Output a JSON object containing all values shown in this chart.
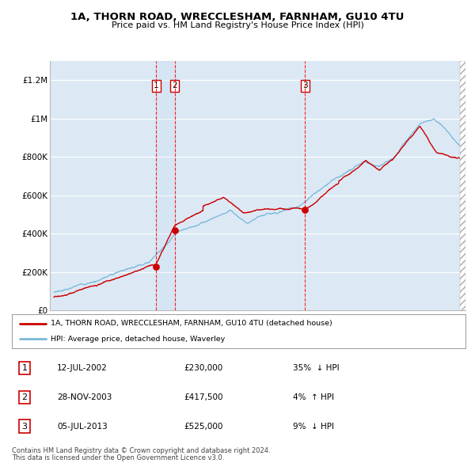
{
  "title": "1A, THORN ROAD, WRECCLESHAM, FARNHAM, GU10 4TU",
  "subtitle": "Price paid vs. HM Land Registry's House Price Index (HPI)",
  "background_color": "#ffffff",
  "plot_bg_color": "#dce9f5",
  "grid_color": "#ffffff",
  "hpi_line_color": "#7ab8d9",
  "price_line_color": "#cc0000",
  "sale_marker_color": "#cc0000",
  "transactions": [
    {
      "num": 1,
      "date": "12-JUL-2002",
      "price": 230000,
      "pct": "35%",
      "dir": "↓",
      "sale_year": 2002.53
    },
    {
      "num": 2,
      "date": "28-NOV-2003",
      "price": 417500,
      "pct": "4%",
      "dir": "↑",
      "sale_year": 2003.91
    },
    {
      "num": 3,
      "date": "05-JUL-2013",
      "price": 525000,
      "pct": "9%",
      "dir": "↓",
      "sale_year": 2013.52
    }
  ],
  "legend_entries": [
    "1A, THORN ROAD, WRECCLESHAM, FARNHAM, GU10 4TU (detached house)",
    "HPI: Average price, detached house, Waverley"
  ],
  "footer": [
    "Contains HM Land Registry data © Crown copyright and database right 2024.",
    "This data is licensed under the Open Government Licence v3.0."
  ],
  "ylim": [
    0,
    1300000
  ],
  "yticks": [
    0,
    200000,
    400000,
    600000,
    800000,
    1000000,
    1200000
  ],
  "ytick_labels": [
    "£0",
    "£200K",
    "£400K",
    "£600K",
    "£800K",
    "£1M",
    "£1.2M"
  ],
  "x_start_year": 1995,
  "x_end_year": 2025
}
